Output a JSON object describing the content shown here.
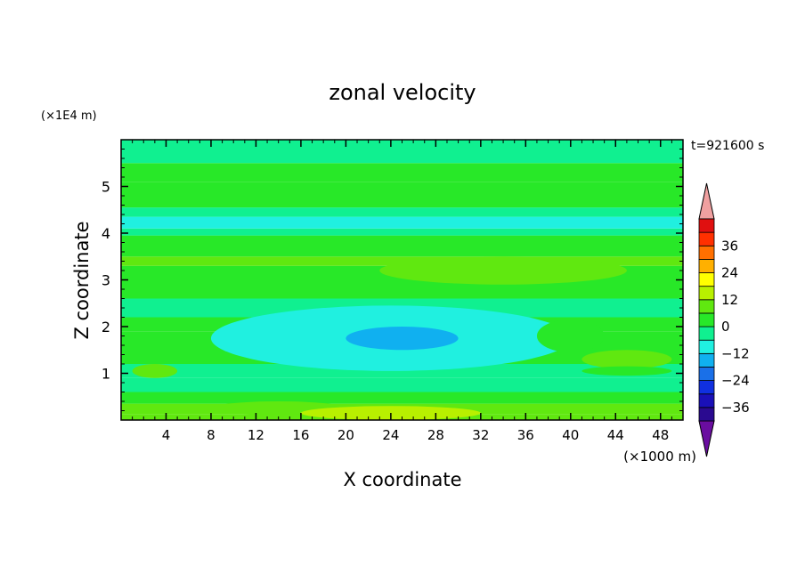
{
  "chart_data": {
    "type": "heatmap",
    "title": "zonal velocity",
    "xlabel": "X coordinate",
    "ylabel": "Z coordinate",
    "x_unit_label": "(×1000 m)",
    "y_unit_label": "(×1E4 m)",
    "time_label": "t=921600 s",
    "xlim": [
      0,
      50
    ],
    "ylim": [
      0,
      6
    ],
    "x_ticks": [
      "4",
      "8",
      "12",
      "16",
      "20",
      "24",
      "28",
      "32",
      "36",
      "40",
      "44",
      "48"
    ],
    "y_ticks": [
      "1",
      "2",
      "3",
      "4",
      "5"
    ],
    "colorbar": {
      "labels": [
        "36",
        "24",
        "12",
        "0",
        "−12",
        "−24",
        "−36"
      ],
      "levels": [
        -42,
        -36,
        -30,
        -24,
        -18,
        -12,
        -6,
        0,
        6,
        12,
        18,
        24,
        30,
        36,
        42
      ],
      "colors": [
        "#6a0da0",
        "#2a0a90",
        "#1a10b8",
        "#1030e0",
        "#1a70e8",
        "#10b0f0",
        "#20f0e0",
        "#10f090",
        "#28e828",
        "#60e810",
        "#b8f000",
        "#ffff00",
        "#ffb000",
        "#ff7000",
        "#ff3000",
        "#e01010",
        "#f0a0a0"
      ]
    },
    "bands": [
      {
        "z0": 0.0,
        "z1": 0.12,
        "value": 8
      },
      {
        "z0": 0.12,
        "z1": 0.35,
        "value": 6
      },
      {
        "z0": 0.35,
        "z1": 0.6,
        "value": 2
      },
      {
        "z0": 0.6,
        "z1": 0.9,
        "value": -4
      },
      {
        "z0": 0.9,
        "z1": 1.2,
        "value": -2
      },
      {
        "z0": 1.2,
        "z1": 1.6,
        "value": 2
      },
      {
        "z0": 1.6,
        "z1": 1.9,
        "value": 4
      },
      {
        "z0": 1.9,
        "z1": 2.2,
        "value": 0
      },
      {
        "z0": 2.2,
        "z1": 2.6,
        "value": -2
      },
      {
        "z0": 2.6,
        "z1": 2.8,
        "value": 0
      },
      {
        "z0": 2.8,
        "z1": 3.3,
        "value": 5
      },
      {
        "z0": 3.3,
        "z1": 3.5,
        "value": 8
      },
      {
        "z0": 3.5,
        "z1": 3.8,
        "value": 4
      },
      {
        "z0": 3.8,
        "z1": 3.95,
        "value": 1
      },
      {
        "z0": 3.95,
        "z1": 4.1,
        "value": -4
      },
      {
        "z0": 4.1,
        "z1": 4.35,
        "value": -8
      },
      {
        "z0": 4.35,
        "z1": 4.55,
        "value": -3
      },
      {
        "z0": 4.55,
        "z1": 5.1,
        "value": 2
      },
      {
        "z0": 5.1,
        "z1": 5.5,
        "value": 4
      },
      {
        "z0": 5.5,
        "z1": 6.0,
        "value": -1
      }
    ],
    "blobs": [
      {
        "x": 24,
        "z": 1.75,
        "rx": 16,
        "rz": 0.7,
        "value": -8
      },
      {
        "x": 25,
        "z": 1.75,
        "rx": 5,
        "rz": 0.25,
        "value": -14
      },
      {
        "x": 14,
        "z": 0.25,
        "rx": 6,
        "rz": 0.15,
        "value": 9
      },
      {
        "x": 24,
        "z": 0.15,
        "rx": 8,
        "rz": 0.15,
        "value": 12
      },
      {
        "x": 34,
        "z": 3.2,
        "rx": 11,
        "rz": 0.3,
        "value": 11
      },
      {
        "x": 3,
        "z": 1.05,
        "rx": 2,
        "rz": 0.15,
        "value": 9
      },
      {
        "x": 45,
        "z": 1.3,
        "rx": 4,
        "rz": 0.2,
        "value": 9
      },
      {
        "x": 45,
        "z": 1.05,
        "rx": 4,
        "rz": 0.1,
        "value": 3
      },
      {
        "x": 40,
        "z": 1.8,
        "rx": 3,
        "rz": 0.35,
        "value": 4
      }
    ]
  }
}
